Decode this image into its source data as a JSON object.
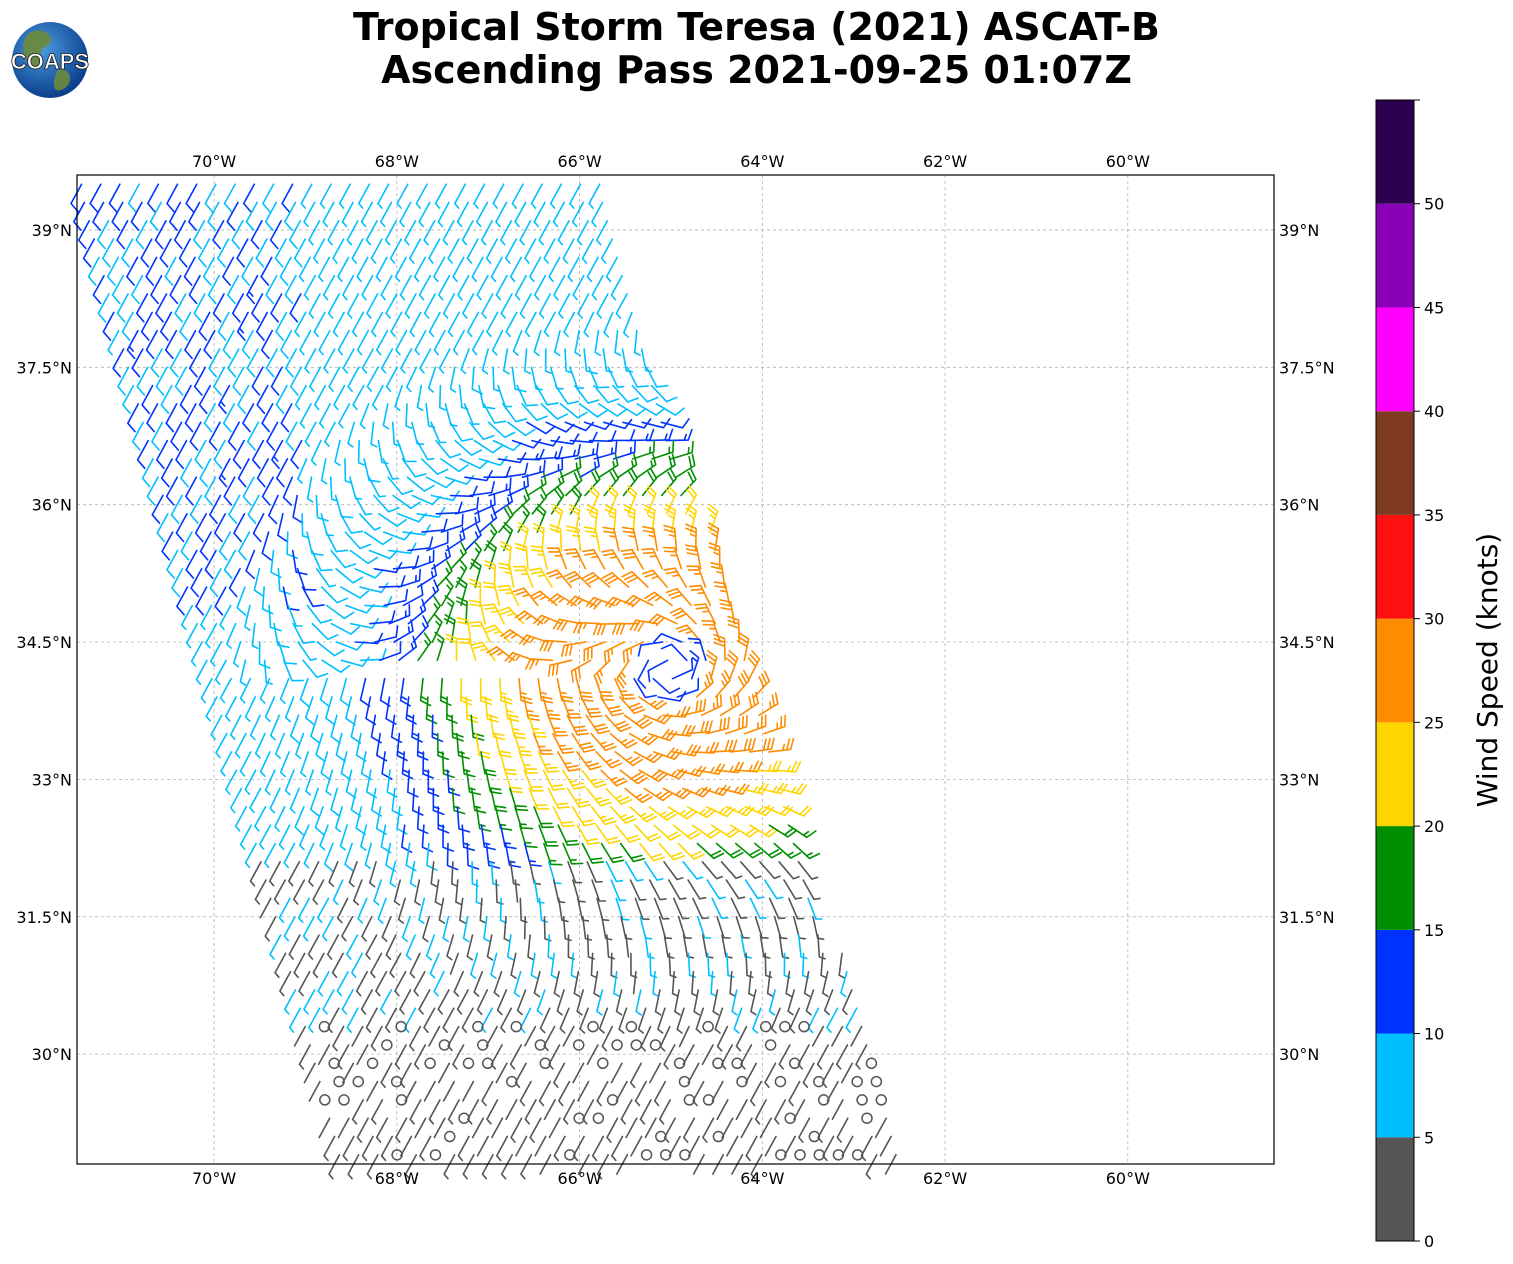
{
  "title": {
    "line1": "Tropical Storm Teresa (2021) ASCAT-B",
    "line2": "Ascending Pass 2021-09-25 01:07Z"
  },
  "logo": {
    "text": "COAPS"
  },
  "map": {
    "lon_range": [
      -71.5,
      -58.4
    ],
    "lat_range": [
      28.8,
      39.6
    ],
    "gridlines": true,
    "lon_ticks": [
      {
        "value": -70,
        "label": "70°W"
      },
      {
        "value": -68,
        "label": "68°W"
      },
      {
        "value": -66,
        "label": "66°W"
      },
      {
        "value": -64,
        "label": "64°W"
      },
      {
        "value": -62,
        "label": "62°W"
      },
      {
        "value": -60,
        "label": "60°W"
      }
    ],
    "lat_ticks": [
      {
        "value": 39,
        "label": "39°N"
      },
      {
        "value": 37.5,
        "label": "37.5°N"
      },
      {
        "value": 36,
        "label": "36°N"
      },
      {
        "value": 34.5,
        "label": "34.5°N"
      },
      {
        "value": 33,
        "label": "33°N"
      },
      {
        "value": 31.5,
        "label": "31.5°N"
      },
      {
        "value": 30,
        "label": "30°N"
      }
    ]
  },
  "colorbar": {
    "title": "Wind Speed (knots)",
    "bins": [
      {
        "min": 0,
        "max": 5,
        "color": "#555555"
      },
      {
        "min": 5,
        "max": 10,
        "color": "#00bfff"
      },
      {
        "min": 10,
        "max": 15,
        "color": "#0033ff"
      },
      {
        "min": 15,
        "max": 20,
        "color": "#008f00"
      },
      {
        "min": 20,
        "max": 25,
        "color": "#ffd500"
      },
      {
        "min": 25,
        "max": 30,
        "color": "#ff8c00"
      },
      {
        "min": 30,
        "max": 35,
        "color": "#ff1010"
      },
      {
        "min": 35,
        "max": 40,
        "color": "#7f3a22"
      },
      {
        "min": 40,
        "max": 45,
        "color": "#ff00ff"
      },
      {
        "min": 45,
        "max": 50,
        "color": "#8800b8"
      },
      {
        "min": 50,
        "max": 55,
        "color": "#2b004e"
      }
    ],
    "tick_labels": [
      "0",
      "5",
      "10",
      "15",
      "20",
      "25",
      "30",
      "35",
      "40",
      "45",
      "50"
    ]
  },
  "storm": {
    "center_lon": -65.0,
    "center_lat": 34.2
  },
  "swath": {
    "corners": [
      [
        -71.5,
        39.6
      ],
      [
        -65.8,
        39.6
      ],
      [
        -62.4,
        28.8
      ],
      [
        -68.6,
        28.8
      ]
    ],
    "spacing_deg": 0.2
  }
}
